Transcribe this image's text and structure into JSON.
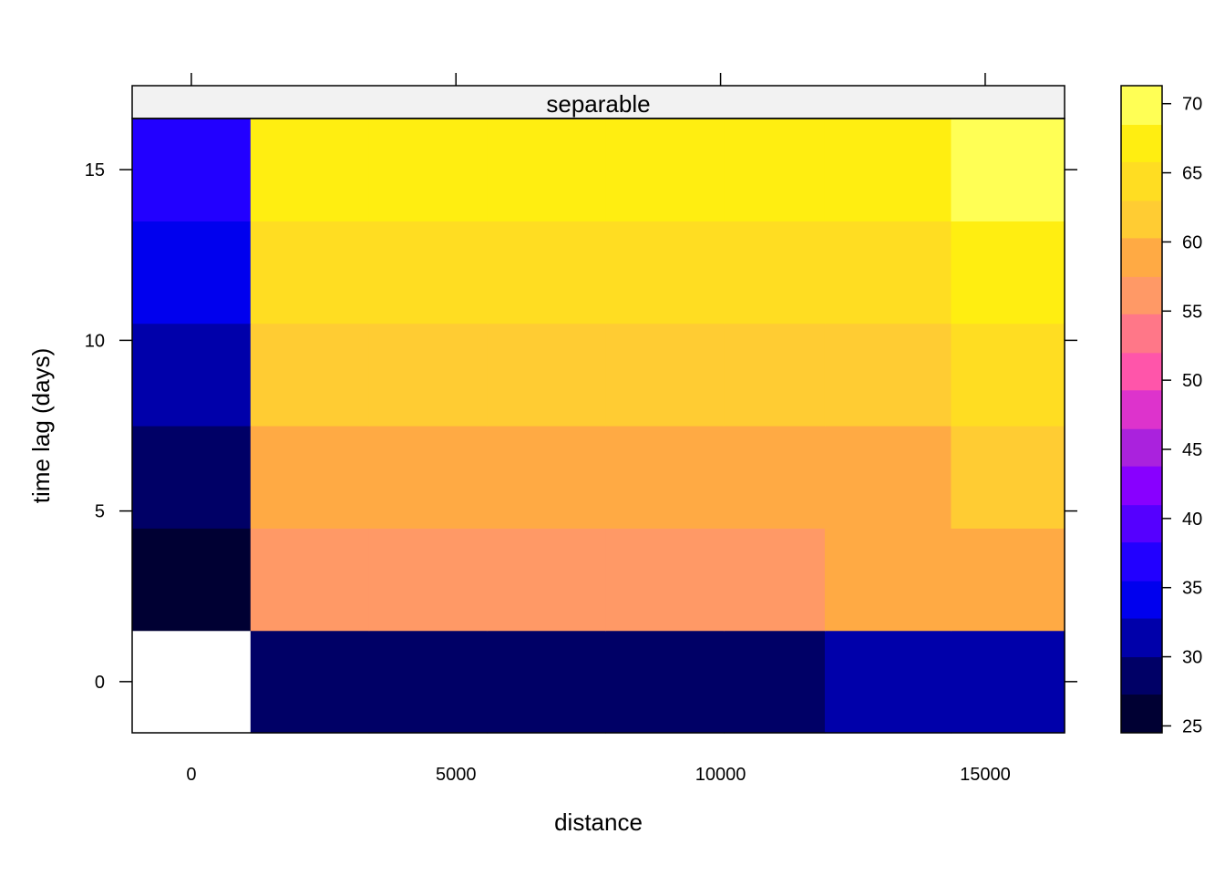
{
  "chart_data": {
    "type": "heatmap",
    "title": "",
    "panel_title": "separable",
    "xlabel": "distance",
    "ylabel": "time lag (days)",
    "x_ticks": [
      0,
      5000,
      10000,
      15000
    ],
    "x_tick_labels": [
      "0",
      "5000",
      "10000",
      "15000"
    ],
    "y_ticks": [
      0,
      5,
      10,
      15
    ],
    "y_tick_labels": [
      "0",
      "5",
      "10",
      "15"
    ],
    "xlim": [
      -1118,
      16500
    ],
    "ylim": [
      -1.5,
      16.5
    ],
    "x_bins": [
      -1118,
      1118,
      3354,
      5590,
      7826,
      10062,
      11969,
      14354,
      16500
    ],
    "y_bins": [
      -1.5,
      1.5,
      4.5,
      7.5,
      10.5,
      13.5,
      16.5
    ],
    "cells": [
      [
        null,
        29,
        29,
        29,
        29,
        29,
        31,
        31
      ],
      [
        26,
        56,
        56,
        56,
        56,
        56,
        59,
        59
      ],
      [
        29,
        59,
        59,
        59,
        59,
        59,
        59,
        61
      ],
      [
        31,
        61,
        61,
        61,
        61,
        61,
        61,
        64
      ],
      [
        34,
        64,
        64,
        64,
        64,
        64,
        64,
        67
      ],
      [
        37,
        67,
        67,
        67,
        67,
        67,
        67,
        69
      ]
    ],
    "colorbar": {
      "breaks": [
        24.5,
        27.3,
        30.0,
        32.8,
        35.5,
        38.3,
        41.0,
        43.8,
        46.5,
        49.3,
        52.0,
        54.8,
        57.5,
        60.3,
        63.0,
        65.8,
        68.5,
        71.3
      ],
      "colors": [
        "#000033",
        "#000066",
        "#0000AA",
        "#0000EE",
        "#2200FF",
        "#5500FF",
        "#8800FF",
        "#AA22DD",
        "#DD33CC",
        "#FF55AA",
        "#FF7788",
        "#FF9966",
        "#FFAA44",
        "#FFCC33",
        "#FFDD22",
        "#FFEE11",
        "#FFFF55"
      ],
      "ticks": [
        25,
        30,
        35,
        40,
        45,
        50,
        55,
        60,
        65,
        70
      ],
      "tick_labels": [
        "25",
        "30",
        "35",
        "40",
        "45",
        "50",
        "55",
        "60",
        "65",
        "70"
      ]
    }
  }
}
